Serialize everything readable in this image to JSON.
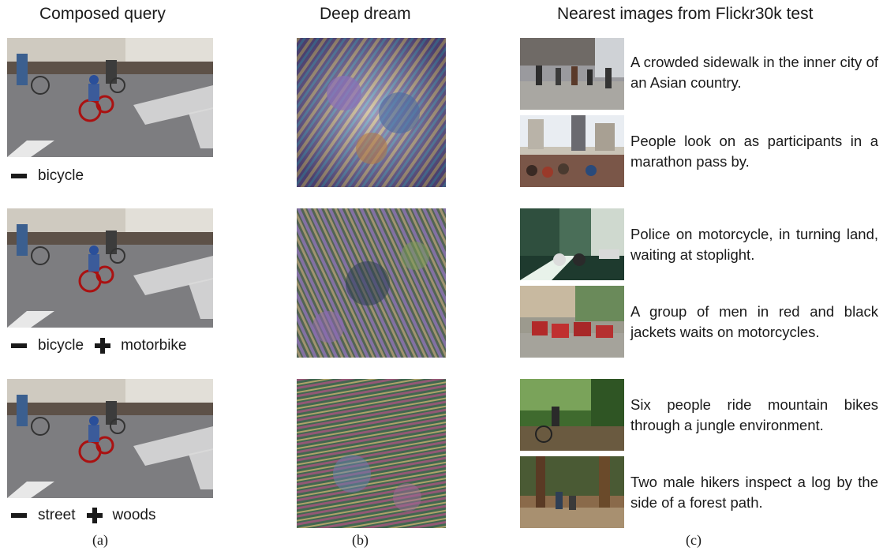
{
  "headers": {
    "composed": "Composed query",
    "dream": "Deep dream",
    "nearest": "Nearest images from Flickr30k test"
  },
  "captions": {
    "a": "(a)",
    "b": "(b)",
    "c": "(c)"
  },
  "queries": [
    {
      "ops": [
        {
          "op": "-",
          "word": "bicycle"
        }
      ]
    },
    {
      "ops": [
        {
          "op": "-",
          "word": "bicycle"
        },
        {
          "op": "+",
          "word": "motorbike"
        }
      ]
    },
    {
      "ops": [
        {
          "op": "-",
          "word": "street"
        },
        {
          "op": "+",
          "word": "woods"
        }
      ]
    }
  ],
  "results": [
    {
      "caption": "A crowded sidewalk in the inner city of an Asian country."
    },
    {
      "caption": "People look on as participants in a marathon pass by."
    },
    {
      "caption": "Police on motorcycle, in turning land, waiting at stoplight."
    },
    {
      "caption": "A group of men in red and black jackets waits on motorcycles."
    },
    {
      "caption": "Six people ride mountain bikes through a jungle environment."
    },
    {
      "caption": "Two male hikers inspect a log by the side of a forest path."
    }
  ]
}
